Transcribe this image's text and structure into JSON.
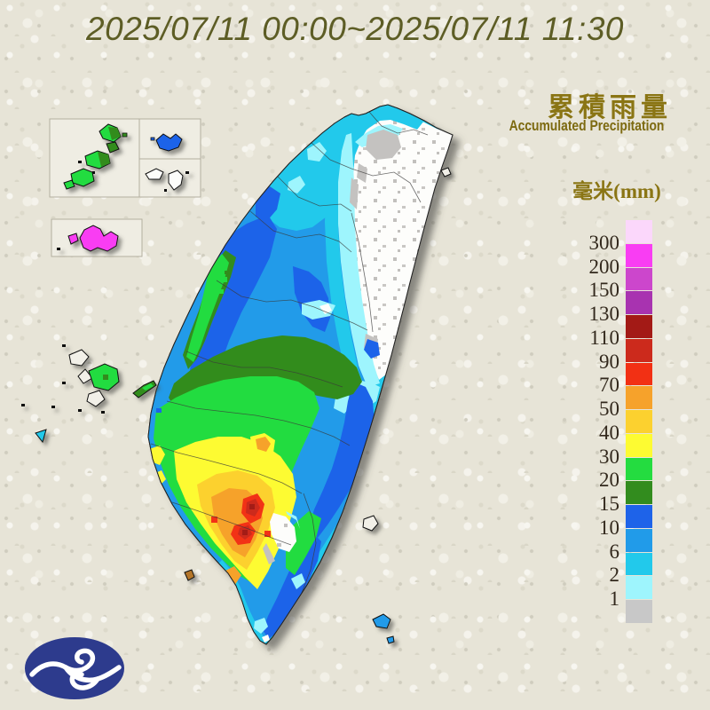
{
  "title": "2025/07/11 00:00~2025/07/11 11:30",
  "panel": {
    "heading_zh": "累積雨量",
    "heading_en": "Accumulated Precipitation",
    "unit_label": "毫米(mm)"
  },
  "legend": {
    "labels": [
      "300",
      "200",
      "150",
      "130",
      "110",
      "90",
      "70",
      "50",
      "40",
      "30",
      "20",
      "15",
      "10",
      "6",
      "2",
      "1"
    ],
    "colors": [
      "#fbd7fb",
      "#f93df3",
      "#cc46cc",
      "#a833b0",
      "#a31a16",
      "#cc2a1c",
      "#f23014",
      "#f6a22b",
      "#fcd12f",
      "#fdfb32",
      "#24dc40",
      "#328c1e",
      "#1e63e9",
      "#219be9",
      "#22c9eb",
      "#9ef5fd",
      "#c8c8c8"
    ]
  },
  "colors": {
    "title_text": "#5d5d25",
    "heading_text": "#8a7514",
    "legend_text": "#32281c",
    "background": "#e7e4d7",
    "logo_blue": "#2d3b8d"
  }
}
